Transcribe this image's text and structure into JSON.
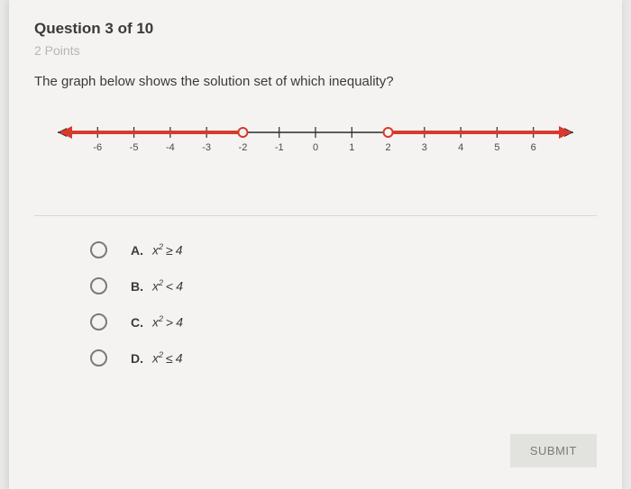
{
  "header": {
    "question_number": "Question 3 of 10",
    "points": "2 Points"
  },
  "prompt": "The graph below shows the solution set of which inequality?",
  "numberline": {
    "type": "numberline",
    "xlim": [
      -7,
      7
    ],
    "ticks": [
      -6,
      -5,
      -4,
      -3,
      -2,
      -1,
      0,
      1,
      2,
      3,
      4,
      5,
      6
    ],
    "tick_labels": [
      "-6",
      "-5",
      "-4",
      "-3",
      "-2",
      "-1",
      "0",
      "1",
      "2",
      "3",
      "4",
      "5",
      "6"
    ],
    "axis_color": "#2b2b2b",
    "tick_color": "#2b2b2b",
    "label_color": "#4a4a4a",
    "label_fontsize": 11,
    "line_width": 1.5,
    "segments": [
      {
        "from": -7,
        "to": -2,
        "color": "#d83a2b",
        "width": 4,
        "arrow_left": true,
        "endpoint_right": "open"
      },
      {
        "from": 2,
        "to": 7,
        "color": "#d83a2b",
        "width": 4,
        "arrow_right": true,
        "endpoint_left": "open"
      }
    ],
    "open_circle_radius": 5,
    "open_circle_fill": "#f4f3f1",
    "open_circle_stroke": "#d83a2b",
    "open_circle_stroke_width": 2,
    "arrow_color": "#d83a2b"
  },
  "choices": [
    {
      "letter": "A.",
      "var": "x",
      "exp": "2",
      "op": "≥",
      "rhs": "4"
    },
    {
      "letter": "B.",
      "var": "x",
      "exp": "2",
      "op": "<",
      "rhs": "4"
    },
    {
      "letter": "C.",
      "var": "x",
      "exp": "2",
      "op": ">",
      "rhs": "4"
    },
    {
      "letter": "D.",
      "var": "x",
      "exp": "2",
      "op": "≤",
      "rhs": "4"
    }
  ],
  "submit_label": "SUBMIT"
}
